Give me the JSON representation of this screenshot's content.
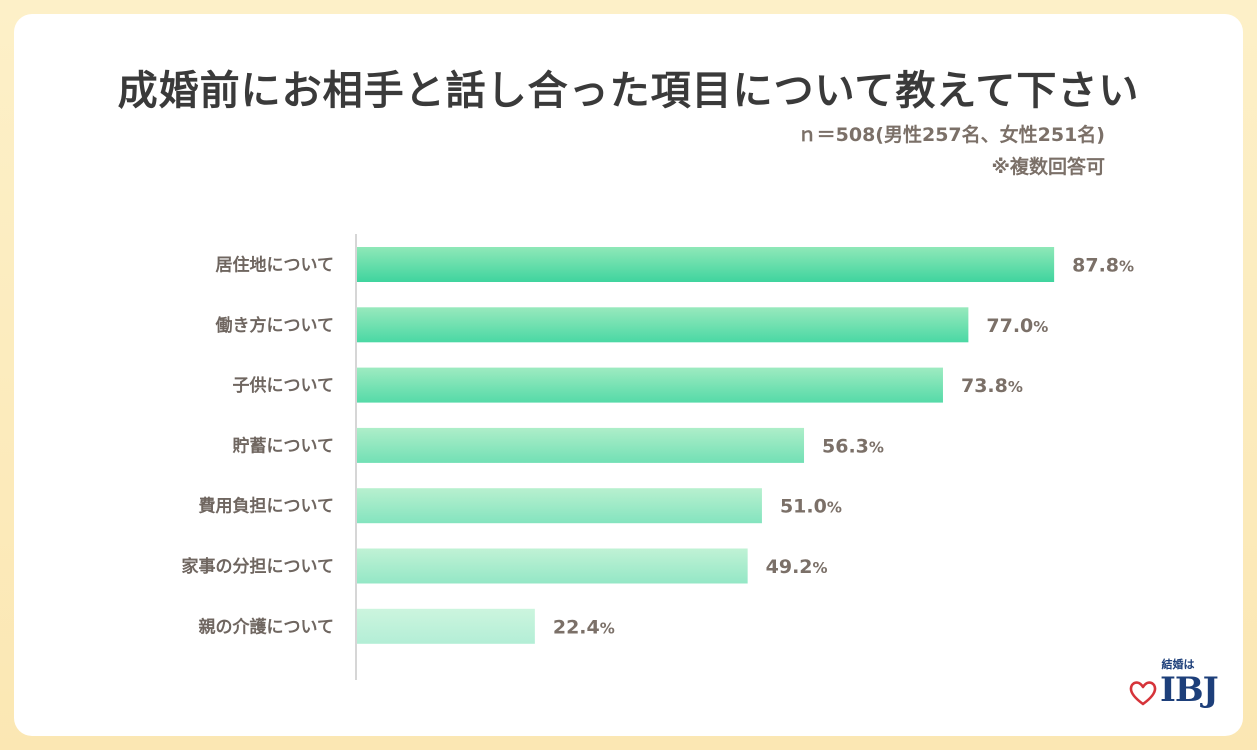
{
  "chart_data": {
    "type": "bar",
    "orientation": "horizontal",
    "title": "成婚前にお相手と話し合った項目について教えて下さい",
    "subtitle": "ｎ＝508(男性257名、女性251名)",
    "note": "※複数回答可",
    "categories": [
      "居住地について",
      "働き方について",
      "子供について",
      "貯蓄について",
      "費用負担について",
      "家事の分担について",
      "親の介護について"
    ],
    "values": [
      87.8,
      77.0,
      73.8,
      56.3,
      51.0,
      49.2,
      22.4
    ],
    "value_labels": [
      "87.8",
      "77.0",
      "73.8",
      "56.3",
      "51.0",
      "49.2",
      "22.4"
    ],
    "unit": "%",
    "xlim": [
      0,
      100
    ],
    "grid": false,
    "colors": {
      "bar_top": [
        "#8fe8b8",
        "#98e9bd",
        "#9eebc1",
        "#aeeec9",
        "#b8f0cf",
        "#c0f2d5",
        "#ccf5de"
      ],
      "bar_bottom": [
        "#3fd49e",
        "#4ad8a4",
        "#55daa8",
        "#72e0b5",
        "#84e4bf",
        "#94e7c6",
        "#b3eed6"
      ],
      "axis": "#c9c9c9"
    }
  },
  "logo": {
    "tagline": "結婚は",
    "brand": "IBJ"
  }
}
